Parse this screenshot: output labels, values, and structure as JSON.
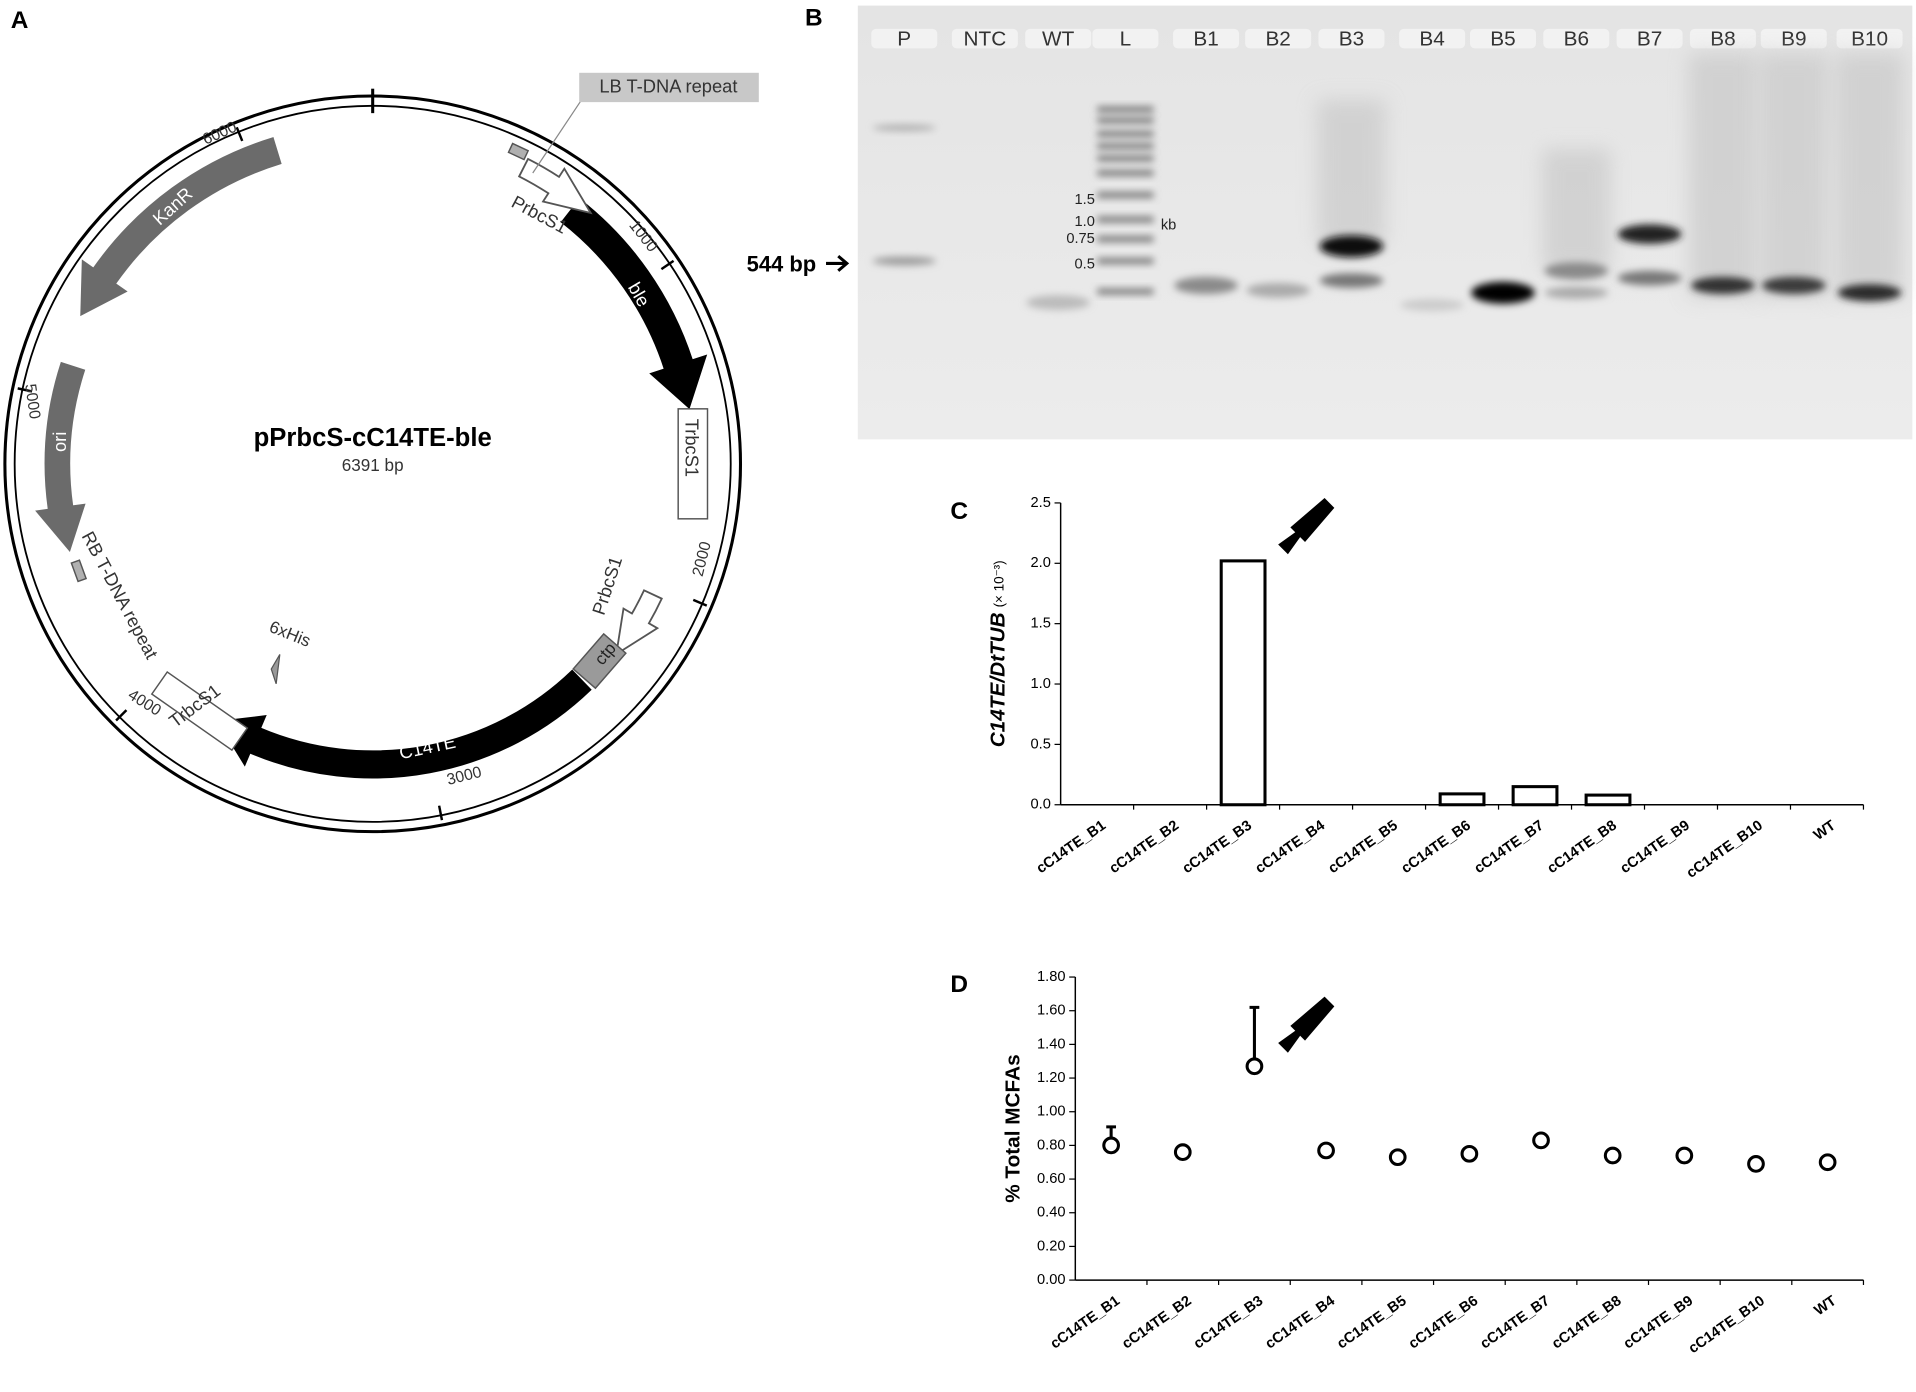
{
  "panel_labels": [
    "A",
    "B",
    "C",
    "D"
  ],
  "plasmid": {
    "name": "pPrbcS-cC14TE-ble",
    "size": "6391 bp",
    "ticks": [
      "1000",
      "2000",
      "3000",
      "4000",
      "5000",
      "6000"
    ],
    "features": [
      "LB T-DNA repeat",
      "PrbcS1",
      "ble",
      "TrbcS1",
      "PrbcS1",
      "ctp",
      "C14TE",
      "TrbcS1",
      "6xHis",
      "RB T-DNA repeat",
      "ori",
      "KanR"
    ]
  },
  "gel": {
    "lanes": [
      "P",
      "NTC",
      "WT",
      "L",
      "B1",
      "B2",
      "B3",
      "B4",
      "B5",
      "B6",
      "B7",
      "B8",
      "B9",
      "B10"
    ],
    "ladder": [
      "1.5",
      "1.0",
      "0.75",
      "0.5"
    ],
    "ladder_unit": "kb",
    "marker": "544 bp"
  },
  "chart_data": [
    {
      "type": "bar",
      "y_label": "C14TE/DtTUB",
      "y_label_unit": "(× 10⁻³)",
      "categories": [
        "cC14TE_B1",
        "cC14TE_B2",
        "cC14TE_B3",
        "cC14TE_B4",
        "cC14TE_B5",
        "cC14TE_B6",
        "cC14TE_B7",
        "cC14TE_B8",
        "cC14TE_B9",
        "cC14TE_B10",
        "WT"
      ],
      "values": [
        0,
        0,
        2.02,
        0,
        0,
        0.09,
        0.15,
        0.08,
        0,
        0,
        0
      ],
      "color": "#ffffff",
      "ylim": [
        0,
        2.5
      ],
      "yticks": [
        {
          "value": 0,
          "label": "0.0"
        },
        0.5,
        {
          "value": 1,
          "label": "1.0"
        },
        1.5,
        {
          "value": 2,
          "label": "2.0"
        },
        2.5
      ]
    },
    {
      "type": "point",
      "y_label": "% Total MCFAs",
      "categories": [
        "cC14TE_B1",
        "cC14TE_B2",
        "cC14TE_B3",
        "cC14TE_B4",
        "cC14TE_B5",
        "cC14TE_B6",
        "cC14TE_B7",
        "cC14TE_B8",
        "cC14TE_B9",
        "cC14TE_B10",
        "WT"
      ],
      "values": [
        0.8,
        0.76,
        1.27,
        0.77,
        0.73,
        0.75,
        0.83,
        0.74,
        0.74,
        0.69,
        0.7
      ],
      "errors": [
        0.11,
        0.02,
        0.35,
        0.02,
        0.02,
        0.02,
        0.02,
        0.02,
        0.02,
        0.02,
        0.02
      ],
      "color": "#ffffff",
      "ylim": [
        0,
        1.8
      ],
      "yticks": [
        {
          "value": 0,
          "label": "0.00"
        },
        {
          "value": 0.2,
          "label": "0.20"
        },
        {
          "value": 0.4,
          "label": "0.40"
        },
        {
          "value": 0.6,
          "label": "0.60"
        },
        {
          "value": 0.8,
          "label": "0.80"
        },
        {
          "value": 1,
          "label": "1.00"
        },
        {
          "value": 1.2,
          "label": "1.20"
        },
        {
          "value": 1.4,
          "label": "1.40"
        },
        {
          "value": 1.6,
          "label": "1.60"
        },
        {
          "value": 1.8,
          "label": "1.80"
        }
      ]
    }
  ]
}
